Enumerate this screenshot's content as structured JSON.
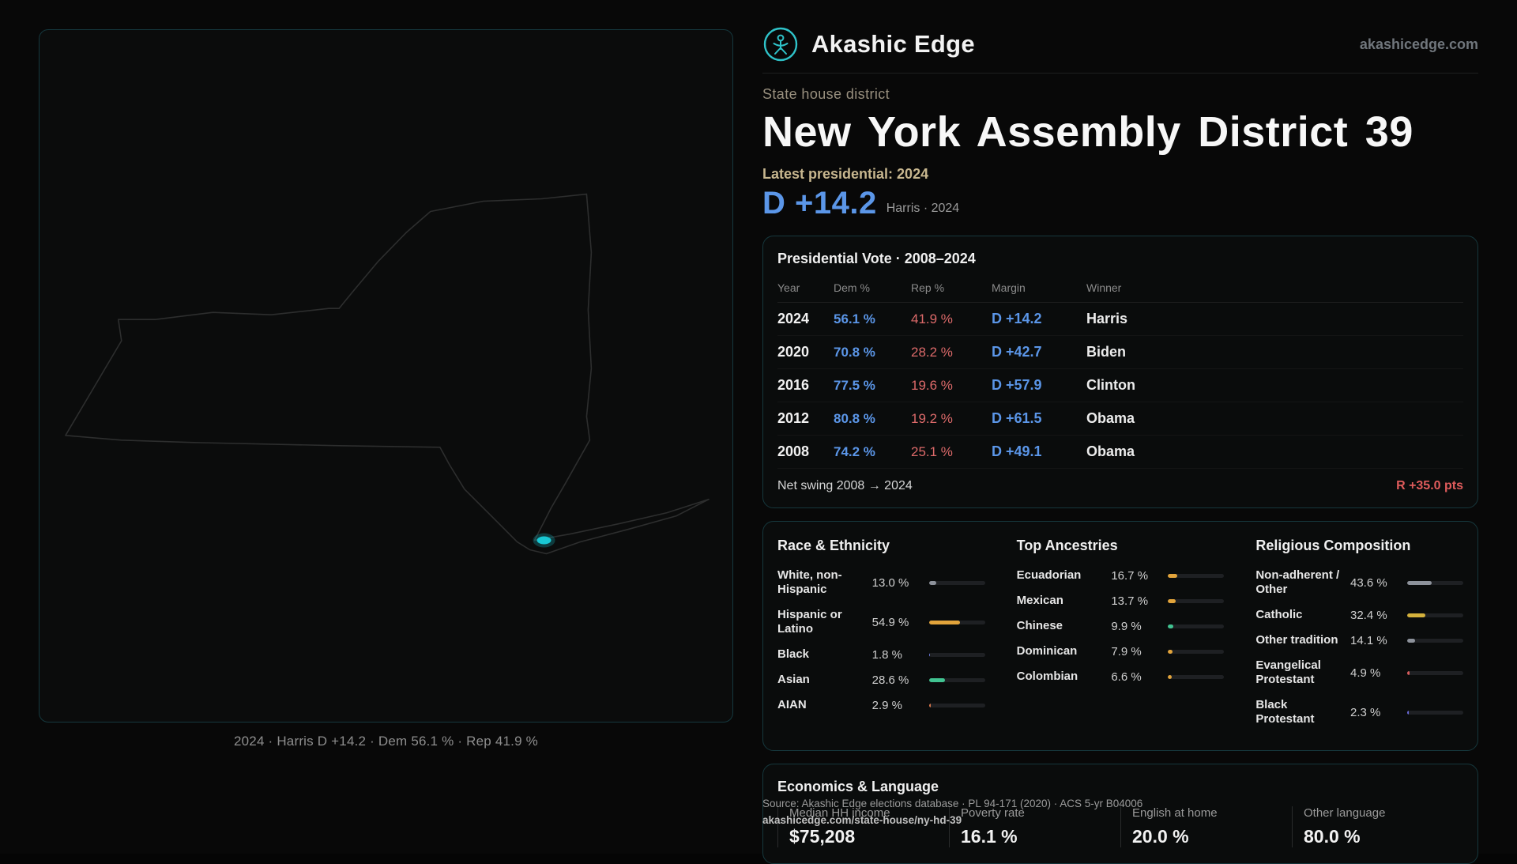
{
  "colors": {
    "accent_teal": "#2fc3c9",
    "dem_blue": "#5b96e8",
    "rep_red": "#dd6a6a",
    "swing_red": "#e05c5c"
  },
  "header": {
    "brand": "Akashic Edge",
    "domain": "akashicedge.com"
  },
  "hero": {
    "kicker": "State house district",
    "title": "New York Assembly District 39",
    "latest_label": "Latest presidential: 2024",
    "margin": "D +14.2",
    "margin_caption": "Harris · 2024"
  },
  "map": {
    "caption": "2024 · Harris D +14.2 · Dem 56.1 % · Rep 41.9 %"
  },
  "presidential": {
    "title": "Presidential Vote · 2008–2024",
    "columns": [
      "Year",
      "Dem %",
      "Rep %",
      "Margin",
      "Winner"
    ],
    "rows": [
      {
        "year": "2024",
        "dem": "56.1 %",
        "rep": "41.9 %",
        "margin": "D +14.2",
        "winner": "Harris"
      },
      {
        "year": "2020",
        "dem": "70.8 %",
        "rep": "28.2 %",
        "margin": "D +42.7",
        "winner": "Biden"
      },
      {
        "year": "2016",
        "dem": "77.5 %",
        "rep": "19.6 %",
        "margin": "D +57.9",
        "winner": "Clinton"
      },
      {
        "year": "2012",
        "dem": "80.8 %",
        "rep": "19.2 %",
        "margin": "D +61.5",
        "winner": "Obama"
      },
      {
        "year": "2008",
        "dem": "74.2 %",
        "rep": "25.1 %",
        "margin": "D +49.1",
        "winner": "Obama"
      }
    ],
    "net_swing_label": "Net swing 2008 → 2024",
    "net_swing_value": "R +35.0 pts"
  },
  "demographics": {
    "race": {
      "title": "Race & Ethnicity",
      "rows": [
        {
          "label": "White, non-Hispanic",
          "value": "13.0 %",
          "pct": 13.0,
          "color": "#8d929b"
        },
        {
          "label": "Hispanic or Latino",
          "value": "54.9 %",
          "pct": 54.9,
          "color": "#e2a43b"
        },
        {
          "label": "Black",
          "value": "1.8 %",
          "pct": 1.8,
          "color": "#6f7bdb"
        },
        {
          "label": "Asian",
          "value": "28.6 %",
          "pct": 28.6,
          "color": "#41c391"
        },
        {
          "label": "AIAN",
          "value": "2.9 %",
          "pct": 2.9,
          "color": "#d8764a"
        }
      ]
    },
    "ancestries": {
      "title": "Top Ancestries",
      "rows": [
        {
          "label": "Ecuadorian",
          "value": "16.7 %",
          "pct": 16.7,
          "color": "#e2a43b"
        },
        {
          "label": "Mexican",
          "value": "13.7 %",
          "pct": 13.7,
          "color": "#e2a43b"
        },
        {
          "label": "Chinese",
          "value": "9.9 %",
          "pct": 9.9,
          "color": "#41c391"
        },
        {
          "label": "Dominican",
          "value": "7.9 %",
          "pct": 7.9,
          "color": "#e2a43b"
        },
        {
          "label": "Colombian",
          "value": "6.6 %",
          "pct": 6.6,
          "color": "#e2a43b"
        }
      ]
    },
    "religion": {
      "title": "Religious Composition",
      "rows": [
        {
          "label": "Non-adherent / Other",
          "value": "43.6 %",
          "pct": 43.6,
          "color": "#8d929b"
        },
        {
          "label": "Catholic",
          "value": "32.4 %",
          "pct": 32.4,
          "color": "#d4b13c"
        },
        {
          "label": "Other tradition",
          "value": "14.1 %",
          "pct": 14.1,
          "color": "#8d929b"
        },
        {
          "label": "Evangelical Protestant",
          "value": "4.9 %",
          "pct": 4.9,
          "color": "#d85c5c"
        },
        {
          "label": "Black Protestant",
          "value": "2.3 %",
          "pct": 2.3,
          "color": "#6a6adb"
        }
      ]
    }
  },
  "economics": {
    "title": "Economics & Language",
    "stats": [
      {
        "label": "Median HH income",
        "value": "$75,208"
      },
      {
        "label": "Poverty rate",
        "value": "16.1 %"
      },
      {
        "label": "English at home",
        "value": "20.0 %"
      },
      {
        "label": "Other language",
        "value": "80.0 %"
      }
    ]
  },
  "footer": {
    "source": "Source: Akashic Edge elections database · PL 94-171 (2020) · ACS 5-yr B04006",
    "permalink": "akashicedge.com/state-house/ny-hd-39"
  }
}
